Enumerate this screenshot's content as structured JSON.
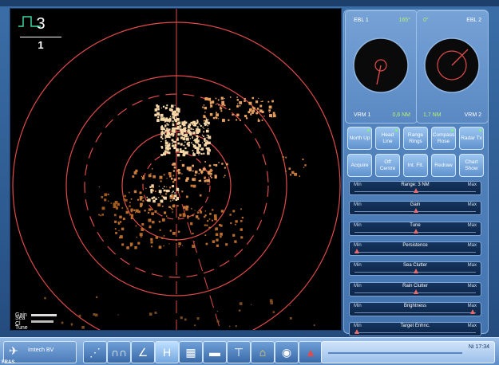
{
  "scale": {
    "top": "3",
    "bottom": "1"
  },
  "mini_controls": [
    "Gain",
    "Sea Cl",
    "Tune"
  ],
  "ebl_left": {
    "label": "EBL 1",
    "value": "165°"
  },
  "ebl_right": {
    "label": "EBL 2",
    "value": "0°"
  },
  "vrm_left": {
    "label": "VRM 1",
    "value": "0,6 NM"
  },
  "vrm_right": {
    "label": "VRM 2",
    "value": "1,7 NM"
  },
  "buttons": [
    {
      "label": "North Up",
      "led": true
    },
    {
      "label": "Head Line",
      "led": true
    },
    {
      "label": "Range Rings",
      "led": false
    },
    {
      "label": "Compass Rose",
      "led": true
    },
    {
      "label": "Radar Tx",
      "led": true
    },
    {
      "label": "Acquire",
      "led": false
    },
    {
      "label": "Off Centre",
      "led": false
    },
    {
      "label": "Int. Flt.",
      "led": false
    },
    {
      "label": "Redraw",
      "led": false
    },
    {
      "label": "Chart Show",
      "led": false
    }
  ],
  "sliders": [
    {
      "name": "Range: 3 NM",
      "min": "Min",
      "max": "Max",
      "level": 0.5
    },
    {
      "name": "Gain",
      "min": "Min",
      "max": "Max",
      "level": 0.5
    },
    {
      "name": "Tune",
      "min": "Min",
      "max": "Max",
      "level": 0.5
    },
    {
      "name": "Persistence",
      "min": "Min",
      "max": "Max",
      "level": 0.0
    },
    {
      "name": "Sea Clutter",
      "min": "Min",
      "max": "Max",
      "level": 0.5
    },
    {
      "name": "Rain Clutter",
      "min": "Min",
      "max": "Max",
      "level": 0.5
    },
    {
      "name": "Brightness",
      "min": "Min",
      "max": "Max",
      "level": 0.98
    },
    {
      "name": "Target Enhnc.",
      "min": "Min",
      "max": "Max",
      "level": 0.0
    }
  ],
  "taskbar": {
    "company": "Imtech BV",
    "time": "Ni 17:34",
    "logo": "FRAS"
  },
  "colors": {
    "ring": "#e04a4a",
    "echo": "#f6d7a8",
    "accent": "#b8f070"
  }
}
